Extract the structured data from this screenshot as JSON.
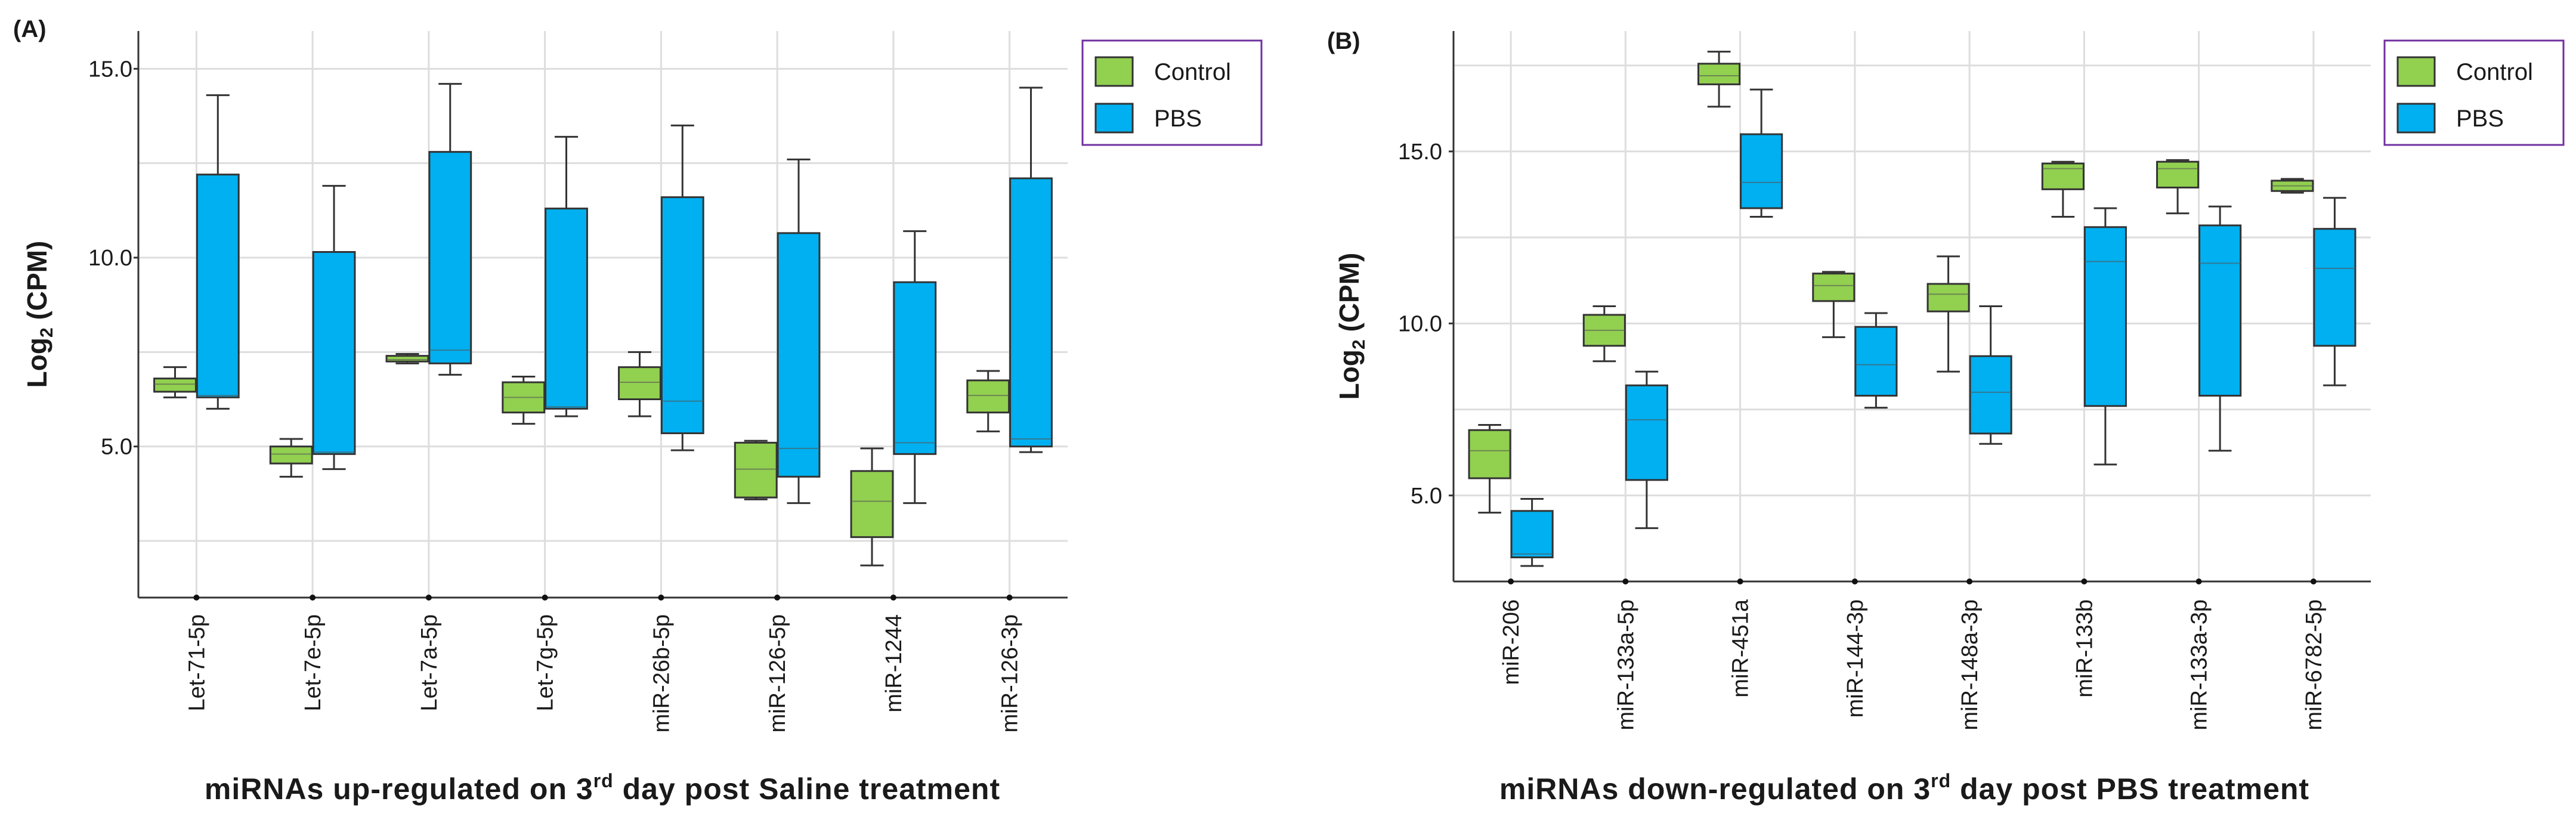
{
  "chart_data": [
    {
      "type": "box",
      "panel_label": "(A)",
      "ylabel_base": "Log",
      "ylabel_sub": "2",
      "ylabel_rest": " (CPM)",
      "xlabel_pre": "miRNAs up-regulated on 3",
      "xlabel_sup": "rd",
      "xlabel_post": " day post Saline treatment",
      "ylim": [
        1.0,
        16.0
      ],
      "yticks": [
        5.0,
        10.0,
        15.0
      ],
      "ytick_labels": [
        "5.0",
        "10.0",
        "15.0"
      ],
      "gridlines": [
        2.5,
        5.0,
        7.5,
        10.0,
        12.5,
        15.0
      ],
      "categories": [
        "Let-71-5p",
        "Let-7e-5p",
        "Let-7a-5p",
        "Let-7g-5p",
        "miR-26b-5p",
        "miR-126-5p",
        "miR-1244",
        "miR-126-3p"
      ],
      "legend": [
        {
          "name": "Control",
          "color": "#92d050"
        },
        {
          "name": "PBS",
          "color": "#00b0f0"
        }
      ],
      "series": [
        {
          "name": "Control",
          "color": "#92d050",
          "boxes": [
            {
              "min": 6.3,
              "q1": 6.45,
              "median": 6.65,
              "q3": 6.8,
              "max": 7.1
            },
            {
              "min": 4.2,
              "q1": 4.55,
              "median": 4.8,
              "q3": 5.0,
              "max": 5.2
            },
            {
              "min": 7.2,
              "q1": 7.25,
              "median": 7.3,
              "q3": 7.4,
              "max": 7.45
            },
            {
              "min": 5.6,
              "q1": 5.9,
              "median": 6.3,
              "q3": 6.7,
              "max": 6.85
            },
            {
              "min": 5.8,
              "q1": 6.25,
              "median": 6.7,
              "q3": 7.1,
              "max": 7.5
            },
            {
              "min": 3.6,
              "q1": 3.65,
              "median": 4.4,
              "q3": 5.1,
              "max": 5.15
            },
            {
              "min": 1.85,
              "q1": 2.6,
              "median": 3.55,
              "q3": 4.35,
              "max": 4.95
            },
            {
              "min": 5.4,
              "q1": 5.9,
              "median": 6.35,
              "q3": 6.75,
              "max": 7.0
            }
          ]
        },
        {
          "name": "PBS",
          "color": "#00b0f0",
          "boxes": [
            {
              "min": 6.0,
              "q1": 6.3,
              "median": 6.35,
              "q3": 12.2,
              "max": 14.3
            },
            {
              "min": 4.4,
              "q1": 4.8,
              "median": 4.85,
              "q3": 10.15,
              "max": 11.9
            },
            {
              "min": 6.9,
              "q1": 7.2,
              "median": 7.55,
              "q3": 12.8,
              "max": 14.6
            },
            {
              "min": 5.8,
              "q1": 6.0,
              "median": 6.05,
              "q3": 11.3,
              "max": 13.2
            },
            {
              "min": 4.9,
              "q1": 5.35,
              "median": 6.2,
              "q3": 11.6,
              "max": 13.5
            },
            {
              "min": 3.5,
              "q1": 4.2,
              "median": 4.95,
              "q3": 10.65,
              "max": 12.6
            },
            {
              "min": 3.5,
              "q1": 4.8,
              "median": 5.1,
              "q3": 9.35,
              "max": 10.7
            },
            {
              "min": 4.85,
              "q1": 5.0,
              "median": 5.2,
              "q3": 12.1,
              "max": 14.5
            }
          ]
        }
      ]
    },
    {
      "type": "box",
      "panel_label": "(B)",
      "ylabel_base": "Log",
      "ylabel_sub": "2",
      "ylabel_rest": " (CPM)",
      "xlabel_pre": "miRNAs down-regulated on 3",
      "xlabel_sup": "rd",
      "xlabel_post": " day post PBS treatment",
      "ylim": [
        2.5,
        18.5
      ],
      "yticks": [
        5.0,
        10.0,
        15.0
      ],
      "ytick_labels": [
        "5.0",
        "10.0",
        "15.0"
      ],
      "gridlines": [
        2.5,
        5.0,
        7.5,
        10.0,
        12.5,
        15.0,
        17.5
      ],
      "categories": [
        "miR-206",
        "miR-133a-5p",
        "miR-451a",
        "miR-144-3p",
        "miR-148a-3p",
        "miR-133b",
        "miR-133a-3p",
        "miR-6782-5p"
      ],
      "legend": [
        {
          "name": "Control",
          "color": "#92d050"
        },
        {
          "name": "PBS",
          "color": "#00b0f0"
        }
      ],
      "series": [
        {
          "name": "Control",
          "color": "#92d050",
          "boxes": [
            {
              "min": 4.5,
              "q1": 5.5,
              "median": 6.3,
              "q3": 6.9,
              "max": 7.05
            },
            {
              "min": 8.9,
              "q1": 9.35,
              "median": 9.8,
              "q3": 10.25,
              "max": 10.5
            },
            {
              "min": 16.3,
              "q1": 16.95,
              "median": 17.2,
              "q3": 17.55,
              "max": 17.9
            },
            {
              "min": 9.6,
              "q1": 10.65,
              "median": 11.1,
              "q3": 11.45,
              "max": 11.5
            },
            {
              "min": 8.6,
              "q1": 10.35,
              "median": 10.85,
              "q3": 11.15,
              "max": 11.95
            },
            {
              "min": 13.1,
              "q1": 13.9,
              "median": 14.5,
              "q3": 14.65,
              "max": 14.7
            },
            {
              "min": 13.2,
              "q1": 13.95,
              "median": 14.5,
              "q3": 14.7,
              "max": 14.75
            },
            {
              "min": 13.8,
              "q1": 13.85,
              "median": 14.0,
              "q3": 14.15,
              "max": 14.2
            }
          ]
        },
        {
          "name": "PBS",
          "color": "#00b0f0",
          "boxes": [
            {
              "min": 2.95,
              "q1": 3.2,
              "median": 3.3,
              "q3": 4.55,
              "max": 4.9
            },
            {
              "min": 4.05,
              "q1": 5.45,
              "median": 7.2,
              "q3": 8.2,
              "max": 8.6
            },
            {
              "min": 13.1,
              "q1": 13.35,
              "median": 14.1,
              "q3": 15.5,
              "max": 16.8
            },
            {
              "min": 7.55,
              "q1": 7.9,
              "median": 8.8,
              "q3": 9.9,
              "max": 10.3
            },
            {
              "min": 6.5,
              "q1": 6.8,
              "median": 8.0,
              "q3": 9.05,
              "max": 10.5
            },
            {
              "min": 5.9,
              "q1": 7.6,
              "median": 11.8,
              "q3": 12.8,
              "max": 13.35
            },
            {
              "min": 6.3,
              "q1": 7.9,
              "median": 11.75,
              "q3": 12.85,
              "max": 13.4
            },
            {
              "min": 8.2,
              "q1": 9.35,
              "median": 11.6,
              "q3": 12.75,
              "max": 13.65
            }
          ]
        }
      ]
    }
  ]
}
